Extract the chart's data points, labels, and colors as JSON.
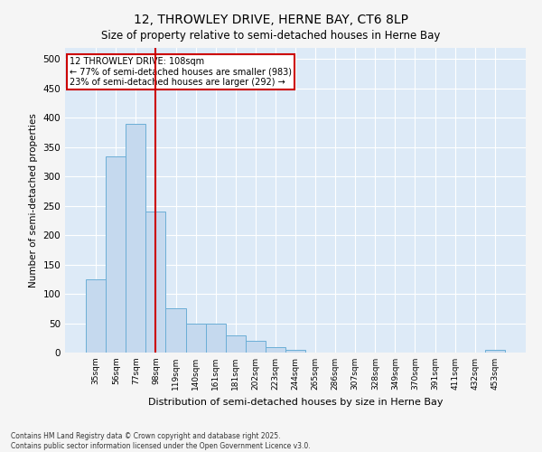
{
  "title": "12, THROWLEY DRIVE, HERNE BAY, CT6 8LP",
  "subtitle": "Size of property relative to semi-detached houses in Herne Bay",
  "xlabel": "Distribution of semi-detached houses by size in Herne Bay",
  "ylabel": "Number of semi-detached properties",
  "footer": "Contains HM Land Registry data © Crown copyright and database right 2025.\nContains public sector information licensed under the Open Government Licence v3.0.",
  "categories": [
    "35sqm",
    "56sqm",
    "77sqm",
    "98sqm",
    "119sqm",
    "140sqm",
    "161sqm",
    "181sqm",
    "202sqm",
    "223sqm",
    "244sqm",
    "265sqm",
    "286sqm",
    "307sqm",
    "328sqm",
    "349sqm",
    "370sqm",
    "391sqm",
    "411sqm",
    "432sqm",
    "453sqm"
  ],
  "values": [
    125,
    335,
    390,
    240,
    75,
    50,
    50,
    30,
    20,
    10,
    5,
    0,
    0,
    0,
    0,
    0,
    0,
    0,
    0,
    0,
    5
  ],
  "bar_color": "#c5d9ee",
  "bar_edge_color": "#6baed6",
  "background_color": "#ddeaf7",
  "grid_color": "#ffffff",
  "vline_x_index": 3,
  "vline_color": "#cc0000",
  "annotation_title": "12 THROWLEY DRIVE: 108sqm",
  "annotation_line1": "← 77% of semi-detached houses are smaller (983)",
  "annotation_line2": "23% of semi-detached houses are larger (292) →",
  "annotation_box_color": "#ffffff",
  "annotation_box_edge_color": "#cc0000",
  "ylim": [
    0,
    520
  ],
  "yticks": [
    0,
    50,
    100,
    150,
    200,
    250,
    300,
    350,
    400,
    450,
    500
  ],
  "fig_bg": "#f5f5f5"
}
